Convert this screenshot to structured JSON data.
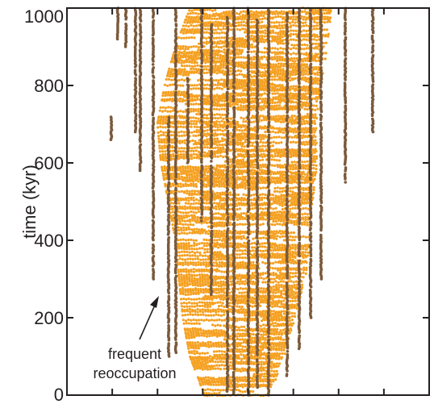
{
  "chart_data": {
    "type": "scatter",
    "title": "",
    "xlabel": "",
    "ylabel": "time (kyr)",
    "ylim": [
      0,
      1000
    ],
    "y_ticks": [
      {
        "value": 0,
        "label": "0"
      },
      {
        "value": 200,
        "label": "200"
      },
      {
        "value": 400,
        "label": "400"
      },
      {
        "value": 600,
        "label": "600"
      },
      {
        "value": 800,
        "label": "800"
      },
      {
        "value": 1000,
        "label": "1000"
      }
    ],
    "x_tick_labels_shown": false,
    "grid": false,
    "annotation": {
      "lines": [
        "frequent",
        "reoccupation"
      ],
      "points_to": {
        "time": 260
      }
    },
    "colors": {
      "persistent": "#7a5a3c",
      "transient": "#f5a020",
      "axis": "#231f20"
    },
    "series": [
      {
        "kind": "persistent",
        "columns": [
          {
            "start": 920,
            "end": 1000
          },
          {
            "start": 900,
            "end": 1000
          },
          {
            "start": 660,
            "end": 720
          },
          {
            "start": 680,
            "end": 1000
          },
          {
            "start": 580,
            "end": 1000
          },
          {
            "start": 300,
            "end": 1000
          },
          {
            "start": 100,
            "end": 720
          },
          {
            "start": 110,
            "end": 1000
          },
          {
            "start": 600,
            "end": 820
          },
          {
            "start": 450,
            "end": 1000
          },
          {
            "start": 260,
            "end": 960
          },
          {
            "start": 10,
            "end": 980
          },
          {
            "start": 0,
            "end": 1000
          },
          {
            "start": 0,
            "end": 1000
          },
          {
            "start": 20,
            "end": 970
          },
          {
            "start": 0,
            "end": 1000
          },
          {
            "start": 50,
            "end": 990
          },
          {
            "start": 120,
            "end": 1000
          },
          {
            "start": 200,
            "end": 1000
          },
          {
            "start": 300,
            "end": 1000
          },
          {
            "start": 550,
            "end": 1000
          },
          {
            "start": 680,
            "end": 1000
          }
        ]
      },
      {
        "kind": "transient",
        "envelope": [
          {
            "time": 0,
            "min": 0.38,
            "max": 0.56
          },
          {
            "time": 100,
            "min": 0.34,
            "max": 0.6
          },
          {
            "time": 200,
            "min": 0.32,
            "max": 0.63
          },
          {
            "time": 300,
            "min": 0.31,
            "max": 0.66
          },
          {
            "time": 400,
            "min": 0.3,
            "max": 0.67
          },
          {
            "time": 500,
            "min": 0.28,
            "max": 0.68
          },
          {
            "time": 600,
            "min": 0.26,
            "max": 0.69
          },
          {
            "time": 700,
            "min": 0.25,
            "max": 0.69
          },
          {
            "time": 800,
            "min": 0.27,
            "max": 0.7
          },
          {
            "time": 900,
            "min": 0.3,
            "max": 0.72
          },
          {
            "time": 1000,
            "min": 0.34,
            "max": 0.73
          }
        ]
      }
    ]
  }
}
